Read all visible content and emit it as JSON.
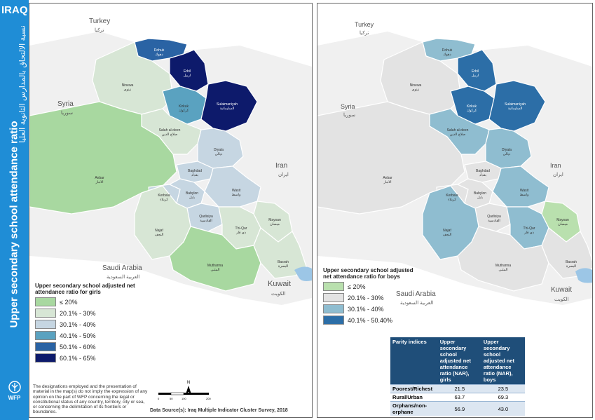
{
  "sidebar": {
    "country": "IRAQ",
    "title_en": "Upper secondary school attendance ratio",
    "title_ar": "نسبة الالتحاق بالمدارس الثانوية العليا",
    "logo_text": "WFP"
  },
  "colors": {
    "sidebar": "#1f8dd6",
    "class_1": "#a8d8a0",
    "class_2": "#d7e6d5",
    "class_3": "#c6d6e2",
    "class_4": "#5aa2c0",
    "class_5": "#2a63a4",
    "class_6": "#0d1a6b",
    "boys_class_1": "#b9e0ae",
    "boys_class_2": "#e3e3e3",
    "boys_class_3": "#8fbdd0",
    "boys_class_4": "#2c6ea7"
  },
  "countries": [
    {
      "en": "Turkey",
      "ar": "تركيا"
    },
    {
      "en": "Syria",
      "ar": "سوريا"
    },
    {
      "en": "Iran",
      "ar": "ايران"
    },
    {
      "en": "Saudi Arabia",
      "ar": "العربية السعودية"
    },
    {
      "en": "Kuwait",
      "ar": "الكويت"
    }
  ],
  "governorates": [
    {
      "en": "Dohuk",
      "ar": "دهوك",
      "girls": 5,
      "boys": 3
    },
    {
      "en": "Erbil",
      "ar": "اربيل",
      "girls": 6,
      "boys": 4
    },
    {
      "en": "Ninewa",
      "ar": "نينوى",
      "girls": 2,
      "boys": 2
    },
    {
      "en": "Kirkuk",
      "ar": "كركوك",
      "girls": 4,
      "boys": 4
    },
    {
      "en": "Sulaimaniyah",
      "ar": "السليمانية",
      "girls": 6,
      "boys": 4
    },
    {
      "en": "Salah al-deen",
      "ar": "صلاح الدين",
      "girls": 2,
      "boys": 3
    },
    {
      "en": "Diyala",
      "ar": "ديالى",
      "girls": 3,
      "boys": 3
    },
    {
      "en": "Anbar",
      "ar": "الانبار",
      "girls": 1,
      "boys": 2
    },
    {
      "en": "Baghdad",
      "ar": "بغداد",
      "girls": 3,
      "boys": 2
    },
    {
      "en": "Kerbala",
      "ar": "كربلاء",
      "girls": 3,
      "boys": 2
    },
    {
      "en": "Babylon",
      "ar": "بابل",
      "girls": 3,
      "boys": 2
    },
    {
      "en": "Wasit",
      "ar": "واسط",
      "girls": 3,
      "boys": 3
    },
    {
      "en": "Qadisiya",
      "ar": "القادسية",
      "girls": 3,
      "boys": 2
    },
    {
      "en": "Najaf",
      "ar": "النجف",
      "girls": 2,
      "boys": 3
    },
    {
      "en": "Thi-Qar",
      "ar": "ذي قار",
      "girls": 2,
      "boys": 3
    },
    {
      "en": "Maysan",
      "ar": "ميسان",
      "girls": 2,
      "boys": 1
    },
    {
      "en": "Muthanna",
      "ar": "المثنى",
      "girls": 1,
      "boys": 2
    },
    {
      "en": "Basrah",
      "ar": "البصرة",
      "girls": 2,
      "boys": 2
    }
  ],
  "legend_girls": {
    "title": "Upper secondary school adjusted net attendance ratio for girls",
    "items": [
      "≤ 20%",
      "20.1% - 30%",
      "30.1% - 40%",
      "40.1% - 50%",
      "50.1% - 60%",
      "60.1% - 65%"
    ]
  },
  "legend_boys": {
    "title": "Upper secondary school adjusted net attendance ratio for boys",
    "items": [
      "≤ 20%",
      "20.1% - 30%",
      "30.1% - 40%",
      "40.1% - 50.40%"
    ]
  },
  "disclaimer": "The designations employed and the presentation of material in the map(s) do not imply the expression of any opinion on the part of WFP concerning the legal or constitutional status of any country, territory, city or sea, or concerning the delimitation of its frontiers or boundaries.",
  "source": "Data Source(s): Iraq Multiple Indicator Cluster Survey, 2018",
  "scale_labels": [
    "0",
    "50",
    "100",
    "200"
  ],
  "north": "N",
  "table": {
    "headers": [
      "Parity indices",
      "Upper secondary school adjusted net attendance ratio (NAR), girls",
      "Upper secondary school adjusted net attendance ratio (NAR), boys"
    ],
    "rows": [
      {
        "label": "Poorest/Richest",
        "girls": "21.5",
        "boys": "23.5"
      },
      {
        "label": "Rural/Urban",
        "girls": "63.7",
        "boys": "69.3"
      },
      {
        "label": "Orphans/non-orphane",
        "girls": "56.9",
        "boys": "43.0"
      }
    ]
  }
}
